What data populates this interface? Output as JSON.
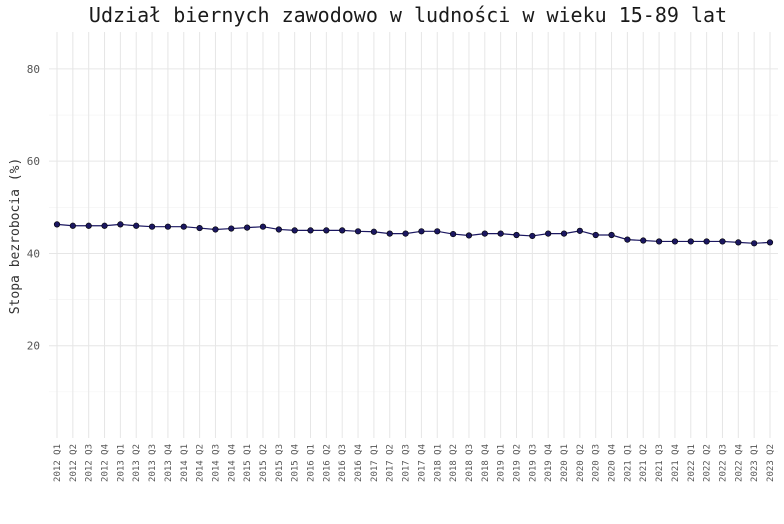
{
  "chart_data": {
    "type": "line",
    "title": "Udział biernych zawodowo w ludności w wieku 15-89 lat",
    "ylabel": "Stopa bezrobocia (%)",
    "xlabel": "",
    "ylim": [
      0,
      88
    ],
    "yticks": [
      20,
      40,
      60,
      80
    ],
    "grid": true,
    "categories": [
      "2012 Q1",
      "2012 Q2",
      "2012 Q3",
      "2012 Q4",
      "2013 Q1",
      "2013 Q2",
      "2013 Q3",
      "2013 Q4",
      "2014 Q1",
      "2014 Q2",
      "2014 Q3",
      "2014 Q4",
      "2015 Q1",
      "2015 Q2",
      "2015 Q3",
      "2015 Q4",
      "2016 Q1",
      "2016 Q2",
      "2016 Q3",
      "2016 Q4",
      "2017 Q1",
      "2017 Q2",
      "2017 Q3",
      "2017 Q4",
      "2018 Q1",
      "2018 Q2",
      "2018 Q3",
      "2018 Q4",
      "2019 Q1",
      "2019 Q2",
      "2019 Q3",
      "2019 Q4",
      "2020 Q1",
      "2020 Q2",
      "2020 Q3",
      "2020 Q4",
      "2021 Q1",
      "2021 Q2",
      "2021 Q3",
      "2021 Q4",
      "2022 Q1",
      "2022 Q2",
      "2022 Q3",
      "2022 Q4",
      "2023 Q1",
      "2023 Q2"
    ],
    "series": [
      {
        "values": [
          46.3,
          46.0,
          46.0,
          46.0,
          46.3,
          46.0,
          45.8,
          45.8,
          45.8,
          45.5,
          45.2,
          45.4,
          45.6,
          45.8,
          45.2,
          45.0,
          45.0,
          45.0,
          45.0,
          44.8,
          44.7,
          44.3,
          44.3,
          44.8,
          44.8,
          44.2,
          43.9,
          44.3,
          44.3,
          44.0,
          43.8,
          44.3,
          44.3,
          44.9,
          44.0,
          44.0,
          43.0,
          42.8,
          42.6,
          42.6,
          42.6,
          42.6,
          42.6,
          42.4,
          42.2,
          42.4
        ],
        "color": "#1b1760"
      }
    ]
  }
}
